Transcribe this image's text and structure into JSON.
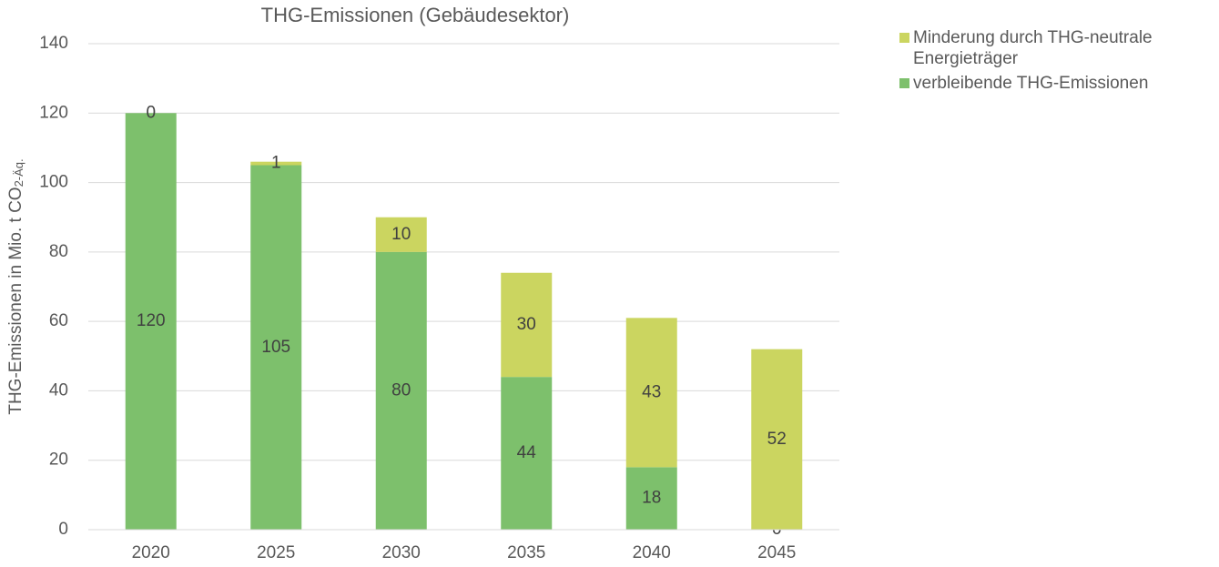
{
  "chart_data": {
    "type": "stacked_bar",
    "title": "THG-Emissionen (Gebäudesektor)",
    "ylabel": "THG-Emissionen in Mio. t CO",
    "ylabel_subscript": "2-Äq.",
    "categories": [
      "2020",
      "2025",
      "2030",
      "2035",
      "2040",
      "2045"
    ],
    "series": [
      {
        "name": "verbleibende THG-Emissionen",
        "color": "#7dc06c",
        "values": [
          120,
          105,
          80,
          44,
          18,
          0
        ]
      },
      {
        "name": "Minderung durch THG-neutrale Energieträger",
        "color": "#cbd560",
        "values": [
          0,
          1,
          10,
          30,
          43,
          52
        ]
      }
    ],
    "ylim": [
      0,
      140
    ],
    "yticks": [
      0,
      20,
      40,
      60,
      80,
      100,
      120,
      140
    ],
    "grid": true,
    "legend": "right"
  }
}
